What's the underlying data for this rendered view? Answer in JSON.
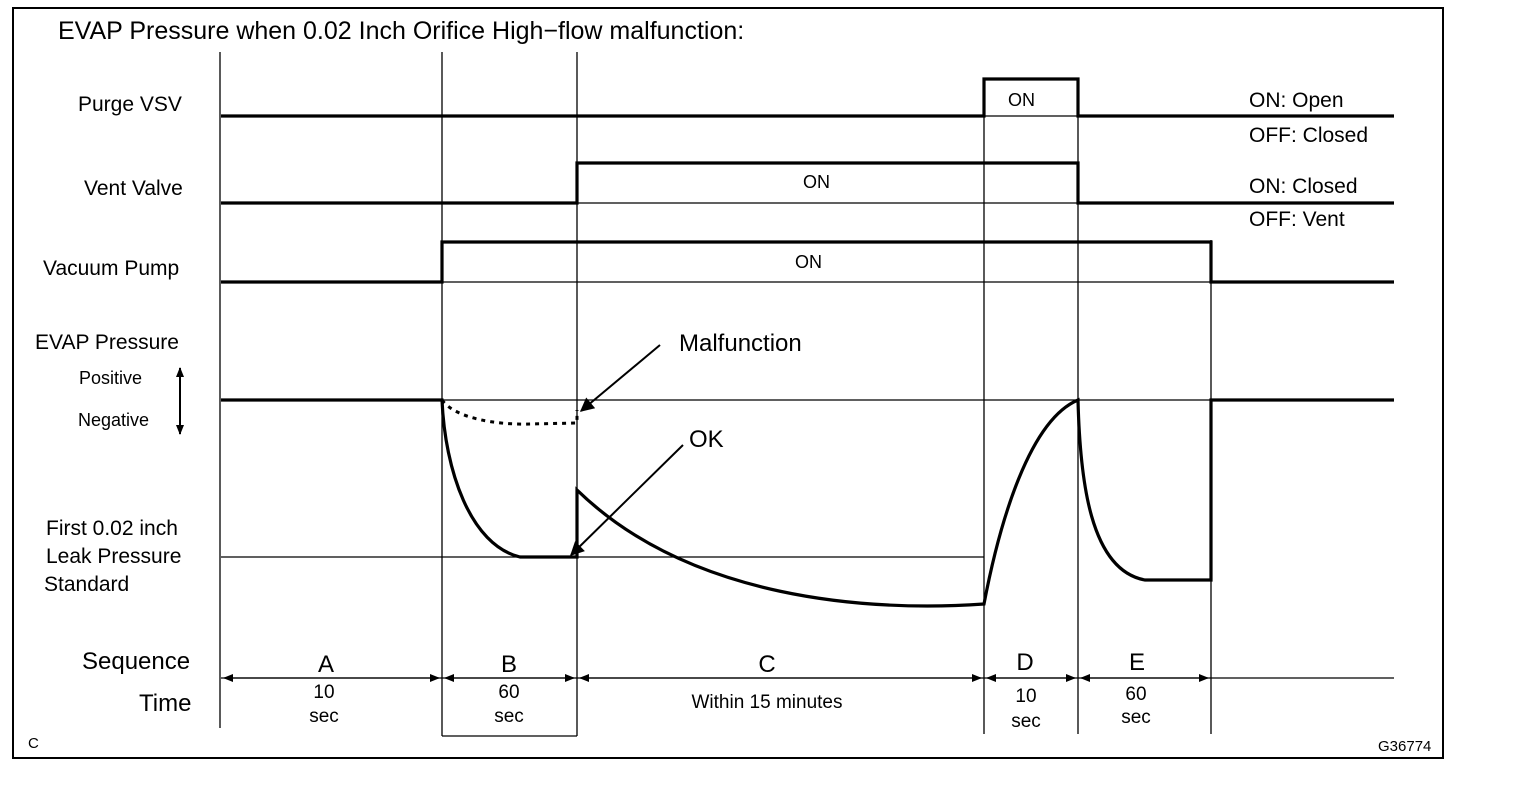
{
  "title": "EVAP Pressure when 0.02 Inch Orifice High−flow malfunction:",
  "signals": {
    "purge_vsv": {
      "label": "Purge VSV",
      "on_label": "ON",
      "legend_on": "ON: Open",
      "legend_off": "OFF: Closed"
    },
    "vent_valve": {
      "label": "Vent Valve",
      "on_label": "ON",
      "legend_on": "ON: Closed",
      "legend_off": "OFF: Vent"
    },
    "vacuum_pump": {
      "label": "Vacuum Pump",
      "on_label": "ON"
    }
  },
  "pressure": {
    "label": "EVAP Pressure",
    "positive": "Positive",
    "negative": "Negative",
    "standard_line1": "First 0.02 inch",
    "standard_line2": "Leak Pressure",
    "standard_line3": "Standard",
    "annotation_malfunction": "Malfunction",
    "annotation_ok": "OK"
  },
  "sequence": {
    "label": "Sequence",
    "time_label": "Time",
    "phases": [
      {
        "name": "A",
        "time1": "10",
        "time2": "sec"
      },
      {
        "name": "B",
        "time1": "60",
        "time2": "sec"
      },
      {
        "name": "C",
        "time1": "Within 15 minutes",
        "time2": ""
      },
      {
        "name": "D",
        "time1": "10",
        "time2": "sec"
      },
      {
        "name": "E",
        "time1": "60",
        "time2": "sec"
      }
    ]
  },
  "corner_letter": "C",
  "figure_code": "G36774"
}
